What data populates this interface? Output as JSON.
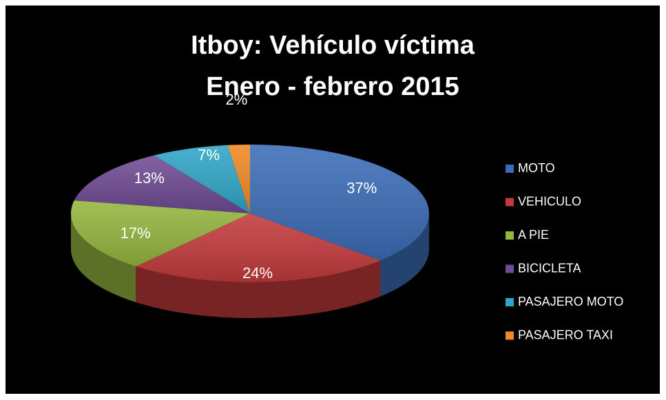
{
  "chart_data": {
    "type": "pie",
    "title": "Itboy: Vehículo víctima",
    "subtitle": "Enero - febrero 2015",
    "categories": [
      "MOTO",
      "VEHICULO",
      "A PIE",
      "BICICLETA",
      "PASAJERO MOTO",
      "PASAJERO TAXI"
    ],
    "values": [
      37,
      24,
      17,
      13,
      7,
      2
    ],
    "value_labels": [
      "37%",
      "24%",
      "17%",
      "13%",
      "7%",
      "2%"
    ],
    "colors": [
      "#3b6cb7",
      "#c23a3c",
      "#94b63f",
      "#6f4b94",
      "#30a6c6",
      "#f08a24"
    ],
    "legend": "right"
  }
}
